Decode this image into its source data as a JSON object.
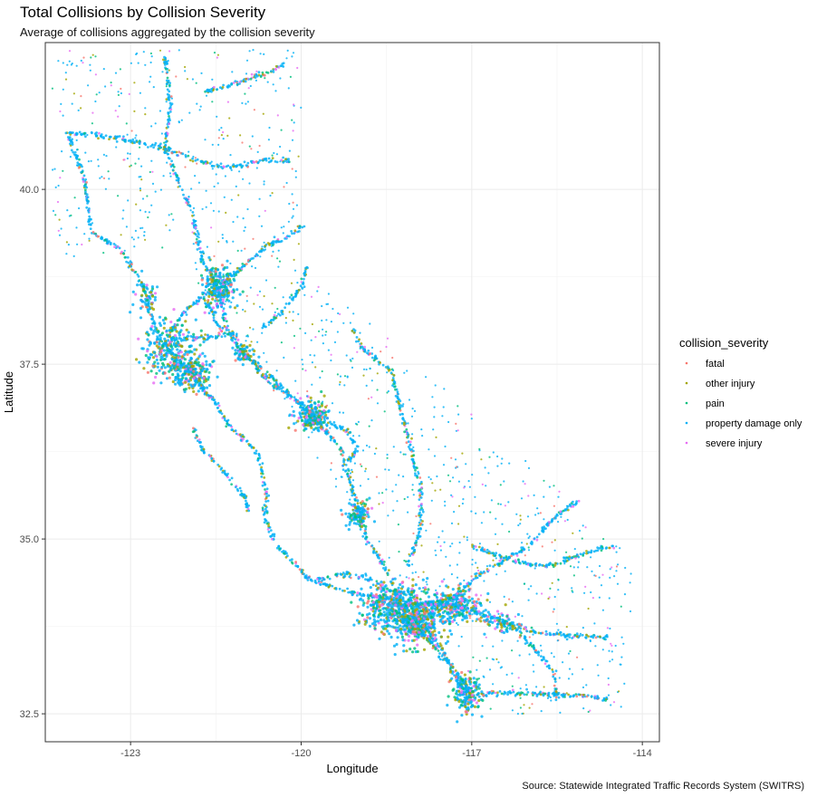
{
  "chart_data": {
    "type": "scatter",
    "title": "Total Collisions by Collision Severity",
    "subtitle": "Average of collisions aggregated by the collision severity",
    "caption": "Source: Statewide Integrated Traffic Records System (SWITRS)",
    "xlabel": "Longitude",
    "ylabel": "Latitude",
    "xlim": [
      -124.5,
      -113.7
    ],
    "ylim": [
      32.1,
      42.1
    ],
    "x_ticks": [
      -123,
      -120,
      -117,
      -114
    ],
    "x_tick_labels": [
      "-123",
      "-120",
      "-117",
      "-114"
    ],
    "y_ticks": [
      32.5,
      35.0,
      37.5,
      40.0
    ],
    "y_tick_labels": [
      "32.5",
      "35.0",
      "37.5",
      "40.0"
    ],
    "grid": true,
    "legend": {
      "title": "collision_severity",
      "placement": "right",
      "entries": [
        "fatal",
        "other injury",
        "pain",
        "property damage only",
        "severe injury"
      ]
    },
    "series": [
      {
        "name": "fatal",
        "color": "#F8766D"
      },
      {
        "name": "other injury",
        "color": "#A3A500"
      },
      {
        "name": "pain",
        "color": "#00BF7D"
      },
      {
        "name": "property damage only",
        "color": "#00B0F6"
      },
      {
        "name": "severe injury",
        "color": "#E76BF3"
      }
    ],
    "corridors": [
      [
        [
          -124.1,
          40.8
        ],
        [
          -123.8,
          40.1
        ],
        [
          -123.7,
          39.4
        ],
        [
          -123.2,
          39.15
        ],
        [
          -122.9,
          38.8
        ],
        [
          -122.7,
          38.45
        ],
        [
          -122.6,
          38.1
        ],
        [
          -122.45,
          37.8
        ]
      ],
      [
        [
          -122.4,
          41.9
        ],
        [
          -122.3,
          41.2
        ],
        [
          -122.39,
          40.58
        ],
        [
          -122.2,
          40.2
        ],
        [
          -121.95,
          39.75
        ],
        [
          -121.75,
          39.0
        ],
        [
          -121.45,
          38.6
        ],
        [
          -121.3,
          37.95
        ],
        [
          -121.0,
          37.65
        ],
        [
          -120.5,
          37.3
        ],
        [
          -120.05,
          36.95
        ],
        [
          -119.8,
          36.75
        ],
        [
          -119.3,
          36.3
        ],
        [
          -119.0,
          35.4
        ],
        [
          -118.85,
          35.0
        ],
        [
          -118.6,
          34.7
        ],
        [
          -118.4,
          34.4
        ],
        [
          -118.25,
          34.05
        ],
        [
          -117.9,
          33.8
        ],
        [
          -117.55,
          33.45
        ],
        [
          -117.25,
          33.0
        ],
        [
          -117.15,
          32.72
        ],
        [
          -117.05,
          32.55
        ]
      ],
      [
        [
          -122.4,
          37.77
        ],
        [
          -122.1,
          37.5
        ],
        [
          -121.9,
          37.33
        ],
        [
          -121.55,
          37.0
        ],
        [
          -121.3,
          36.65
        ],
        [
          -120.75,
          36.2
        ],
        [
          -120.6,
          35.6
        ],
        [
          -120.65,
          35.3
        ],
        [
          -120.45,
          34.95
        ],
        [
          -119.9,
          34.45
        ],
        [
          -119.25,
          34.25
        ],
        [
          -118.9,
          34.2
        ],
        [
          -118.45,
          34.15
        ],
        [
          -118.25,
          34.05
        ]
      ],
      [
        [
          -122.25,
          37.85
        ],
        [
          -121.5,
          37.9
        ],
        [
          -121.2,
          37.95
        ],
        [
          -121.0,
          37.6
        ]
      ],
      [
        [
          -121.5,
          38.58
        ],
        [
          -121.1,
          38.85
        ],
        [
          -120.6,
          39.2
        ],
        [
          -120.2,
          39.33
        ],
        [
          -119.95,
          39.5
        ]
      ],
      [
        [
          -121.6,
          38.55
        ],
        [
          -122.05,
          38.25
        ],
        [
          -122.25,
          38.05
        ],
        [
          -122.3,
          37.9
        ]
      ],
      [
        [
          -118.25,
          34.05
        ],
        [
          -117.4,
          34.1
        ],
        [
          -116.85,
          34.5
        ],
        [
          -116.0,
          34.9
        ],
        [
          -115.5,
          35.35
        ],
        [
          -115.1,
          35.55
        ]
      ],
      [
        [
          -117.3,
          34.1
        ],
        [
          -116.9,
          33.95
        ],
        [
          -116.4,
          33.8
        ],
        [
          -115.8,
          33.65
        ],
        [
          -115.0,
          33.6
        ],
        [
          -114.6,
          33.6
        ]
      ],
      [
        [
          -117.15,
          32.75
        ],
        [
          -116.5,
          32.8
        ],
        [
          -115.6,
          32.78
        ],
        [
          -115.0,
          32.75
        ],
        [
          -114.6,
          32.7
        ]
      ],
      [
        [
          -118.15,
          34.6
        ],
        [
          -117.9,
          35.1
        ],
        [
          -117.9,
          35.7
        ],
        [
          -118.1,
          36.4
        ],
        [
          -118.3,
          37.0
        ],
        [
          -118.4,
          37.4
        ],
        [
          -118.9,
          37.7
        ],
        [
          -119.1,
          38.0
        ]
      ],
      [
        [
          -118.25,
          34.05
        ],
        [
          -118.15,
          33.85
        ],
        [
          -117.95,
          33.7
        ],
        [
          -117.75,
          33.55
        ],
        [
          -117.4,
          33.2
        ],
        [
          -117.25,
          33.0
        ]
      ],
      [
        [
          -121.9,
          36.6
        ],
        [
          -121.75,
          36.3
        ],
        [
          -121.3,
          35.9
        ],
        [
          -121.0,
          35.6
        ],
        [
          -120.9,
          35.35
        ]
      ],
      [
        [
          -119.8,
          36.75
        ],
        [
          -119.2,
          36.55
        ],
        [
          -119.0,
          36.3
        ],
        [
          -119.3,
          36.0
        ]
      ],
      [
        [
          -117.0,
          34.9
        ],
        [
          -116.3,
          34.7
        ],
        [
          -115.7,
          34.6
        ],
        [
          -114.8,
          34.85
        ],
        [
          -114.5,
          34.9
        ]
      ],
      [
        [
          -120.95,
          37.64
        ],
        [
          -120.7,
          37.35
        ],
        [
          -120.5,
          37.2
        ],
        [
          -120.1,
          37.0
        ],
        [
          -119.8,
          36.75
        ]
      ],
      [
        [
          -122.4,
          40.58
        ],
        [
          -121.8,
          40.4
        ],
        [
          -121.3,
          40.3
        ],
        [
          -120.65,
          40.42
        ],
        [
          -120.2,
          40.4
        ]
      ],
      [
        [
          -122.3,
          40.58
        ],
        [
          -123.0,
          40.7
        ],
        [
          -123.8,
          40.8
        ],
        [
          -124.15,
          40.8
        ]
      ],
      [
        [
          -121.7,
          41.4
        ],
        [
          -121.2,
          41.5
        ],
        [
          -120.5,
          41.7
        ],
        [
          -120.3,
          41.8
        ]
      ],
      [
        [
          -121.75,
          38.55
        ],
        [
          -121.5,
          38.1
        ],
        [
          -121.35,
          37.95
        ]
      ],
      [
        [
          -122.0,
          37.55
        ],
        [
          -121.9,
          37.35
        ],
        [
          -121.7,
          37.1
        ],
        [
          -121.55,
          37.0
        ]
      ],
      [
        [
          -116.55,
          33.8
        ],
        [
          -116.2,
          33.7
        ],
        [
          -115.55,
          33.1
        ],
        [
          -115.5,
          32.7
        ]
      ],
      [
        [
          -118.5,
          34.25
        ],
        [
          -118.85,
          34.45
        ],
        [
          -119.3,
          34.5
        ],
        [
          -119.7,
          34.42
        ]
      ],
      [
        [
          -117.85,
          34.05
        ],
        [
          -117.6,
          34.05
        ],
        [
          -117.35,
          34.05
        ],
        [
          -117.2,
          34.05
        ]
      ],
      [
        [
          -120.7,
          38.0
        ],
        [
          -120.4,
          38.2
        ],
        [
          -120.0,
          38.6
        ],
        [
          -119.9,
          38.9
        ]
      ]
    ],
    "clusters": [
      {
        "lon": -118.25,
        "lat": 34.0,
        "sx": 0.32,
        "sy": 0.18,
        "weight": 9
      },
      {
        "lon": -117.9,
        "lat": 33.75,
        "sx": 0.2,
        "sy": 0.15,
        "weight": 4
      },
      {
        "lon": -117.1,
        "lat": 32.8,
        "sx": 0.12,
        "sy": 0.15,
        "weight": 3
      },
      {
        "lon": -122.3,
        "lat": 37.7,
        "sx": 0.22,
        "sy": 0.2,
        "weight": 5
      },
      {
        "lon": -121.9,
        "lat": 37.35,
        "sx": 0.15,
        "sy": 0.12,
        "weight": 3
      },
      {
        "lon": -121.45,
        "lat": 38.6,
        "sx": 0.15,
        "sy": 0.15,
        "weight": 4
      },
      {
        "lon": -119.8,
        "lat": 36.75,
        "sx": 0.15,
        "sy": 0.12,
        "weight": 3
      },
      {
        "lon": -119.0,
        "lat": 35.35,
        "sx": 0.1,
        "sy": 0.08,
        "weight": 2
      },
      {
        "lon": -117.3,
        "lat": 34.05,
        "sx": 0.25,
        "sy": 0.12,
        "weight": 4
      },
      {
        "lon": -122.7,
        "lat": 38.45,
        "sx": 0.1,
        "sy": 0.12,
        "weight": 1
      },
      {
        "lon": -121.0,
        "lat": 37.65,
        "sx": 0.1,
        "sy": 0.08,
        "weight": 1
      },
      {
        "lon": -116.5,
        "lat": 33.8,
        "sx": 0.2,
        "sy": 0.08,
        "weight": 1
      }
    ]
  }
}
